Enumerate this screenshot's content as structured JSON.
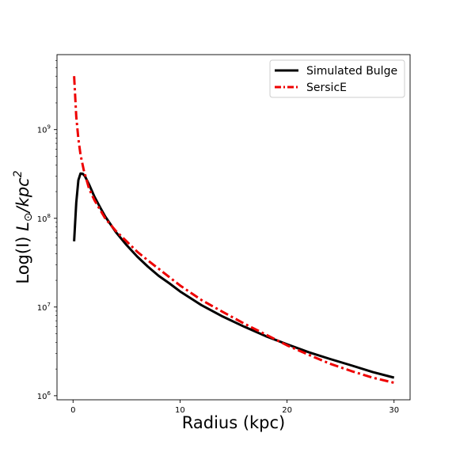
{
  "chart_data": {
    "type": "line",
    "title": "",
    "xlabel": "Radius (kpc)",
    "ylabel": {
      "prefix": "Log(I)  ",
      "unit_symbol": "L",
      "unit_subscript": "⊙",
      "unit_rest": "/kpc",
      "unit_power": "2"
    },
    "xlim": [
      -1.5,
      31.5
    ],
    "ylim": [
      900000,
      7000000000
    ],
    "yscale": "log",
    "x_ticks": [
      0,
      10,
      20,
      30
    ],
    "x_tick_labels": [
      "0",
      "10",
      "20",
      "30"
    ],
    "y_ticks": [
      {
        "value": 1000000,
        "base": "10",
        "exp": "6"
      },
      {
        "value": 10000000,
        "base": "10",
        "exp": "7"
      },
      {
        "value": 100000000,
        "base": "10",
        "exp": "8"
      },
      {
        "value": 1000000000,
        "base": "10",
        "exp": "9"
      }
    ],
    "grid": false,
    "legend_position": "top-right",
    "series": [
      {
        "name": "Simulated Bulge",
        "color": "#000000",
        "style": "solid",
        "x": [
          0.1,
          0.3,
          0.5,
          0.7,
          0.9,
          1.1,
          1.5,
          2,
          2.5,
          3,
          4,
          5,
          6,
          7,
          8,
          9,
          10,
          12,
          14,
          16,
          18,
          20,
          22,
          24,
          26,
          28,
          30
        ],
        "y": [
          55000000,
          150000000,
          270000000,
          320000000,
          318000000,
          300000000,
          240000000,
          175000000,
          135000000,
          105000000,
          70000000,
          50000000,
          37000000,
          28500000,
          22500000,
          18500000,
          15000000,
          10500000,
          7800000,
          6000000,
          4700000,
          3800000,
          3100000,
          2600000,
          2200000,
          1850000,
          1600000
        ]
      },
      {
        "name": "SersicE",
        "color": "#ee0000",
        "style": "dash-dot",
        "x": [
          0.1,
          0.3,
          0.5,
          0.7,
          1,
          1.5,
          2,
          3,
          4,
          5,
          6,
          7,
          8,
          10,
          12,
          14,
          16,
          18,
          20,
          22,
          24,
          26,
          28,
          30
        ],
        "y": [
          4000000000,
          1400000000,
          780000000,
          520000000,
          350000000,
          215000000,
          160000000,
          100000000,
          72000000,
          55000000,
          42000000,
          33500000,
          27000000,
          17500000,
          12000000,
          8800000,
          6500000,
          4900000,
          3700000,
          2900000,
          2300000,
          1900000,
          1600000,
          1400000
        ]
      }
    ]
  }
}
